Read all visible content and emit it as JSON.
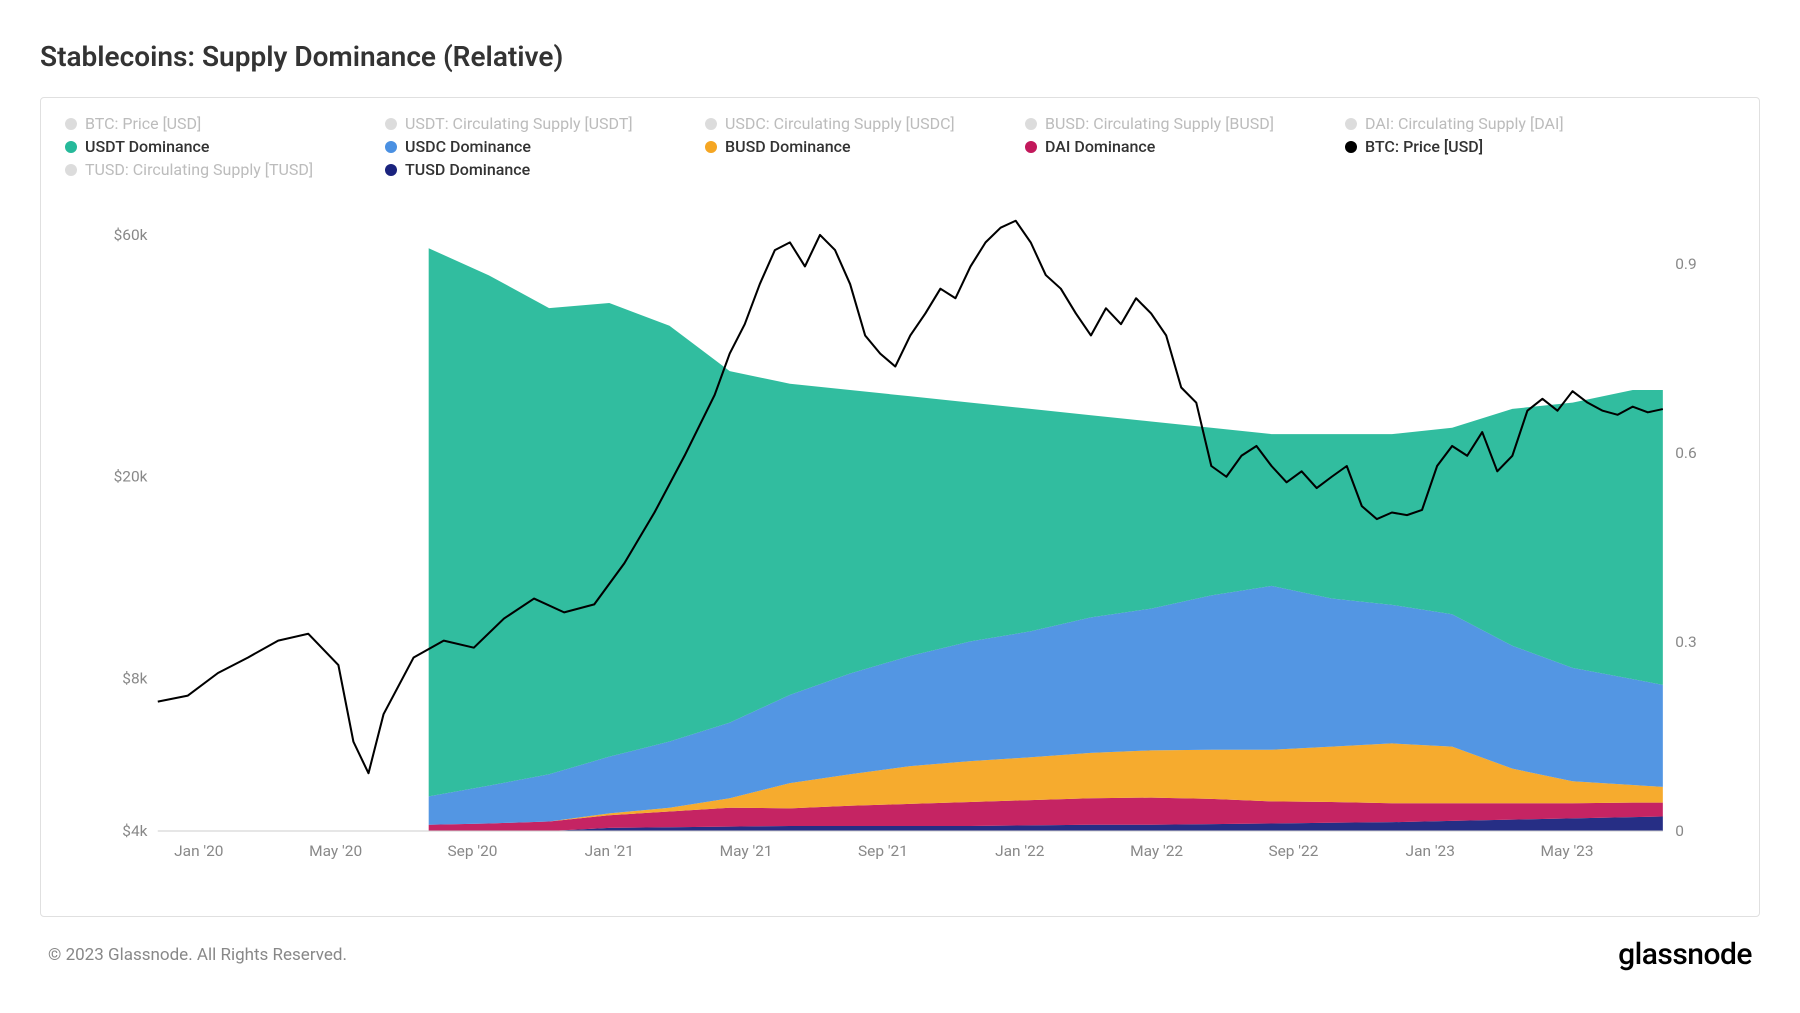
{
  "title": "Stablecoins: Supply Dominance (Relative)",
  "copyright": "© 2023 Glassnode. All Rights Reserved.",
  "logo": "glassnode",
  "watermark": "glassnode",
  "chart": {
    "type": "stacked-area-with-line",
    "background_color": "#ffffff",
    "border_color": "#e0e0e0",
    "grid_color": "#f5f5f5",
    "title_fontsize": 28,
    "label_fontsize": 15,
    "x_axis": {
      "ticks": [
        "Jan '20",
        "May '20",
        "Sep '20",
        "Jan '21",
        "May '21",
        "Sep '21",
        "Jan '22",
        "May '22",
        "Sep '22",
        "Jan '23",
        "May '23"
      ]
    },
    "y_left": {
      "scale": "log",
      "ticks": [
        {
          "v": 4000,
          "label": "$4k"
        },
        {
          "v": 8000,
          "label": "$8k"
        },
        {
          "v": 20000,
          "label": "$20k"
        },
        {
          "v": 60000,
          "label": "$60k"
        }
      ]
    },
    "y_right": {
      "scale": "linear",
      "min": 0,
      "max": 1,
      "ticks": [
        {
          "v": 0,
          "label": "0"
        },
        {
          "v": 0.3,
          "label": "0.3"
        },
        {
          "v": 0.6,
          "label": "0.6"
        },
        {
          "v": 0.9,
          "label": "0.9"
        }
      ]
    },
    "legend": [
      {
        "label": "BTC: Price [USD]",
        "color": "#bcbcbc",
        "active": false
      },
      {
        "label": "USDT: Circulating Supply [USDT]",
        "color": "#26b99a",
        "active": false
      },
      {
        "label": "USDC: Circulating Supply [USDC]",
        "color": "#9b8ce8",
        "active": false
      },
      {
        "label": "BUSD: Circulating Supply [BUSD]",
        "color": "#c9b857",
        "active": false
      },
      {
        "label": "DAI: Circulating Supply [DAI]",
        "color": "#c44d8e",
        "active": false
      },
      {
        "label": "USDT Dominance",
        "color": "#26b99a",
        "active": true
      },
      {
        "label": "USDC Dominance",
        "color": "#4a90e2",
        "active": true
      },
      {
        "label": "BUSD Dominance",
        "color": "#f5a623",
        "active": true
      },
      {
        "label": "DAI Dominance",
        "color": "#c2185b",
        "active": true
      },
      {
        "label": "BTC: Price [USD]",
        "color": "#000000",
        "active": true
      },
      {
        "label": "TUSD: Circulating Supply [TUSD]",
        "color": "#3a3a7e",
        "active": false
      },
      {
        "label": "TUSD Dominance",
        "color": "#1a237e",
        "active": true
      }
    ],
    "stacked_series": {
      "start_x": 0.18,
      "colors": {
        "tusd": "#1a237e",
        "dai": "#c2185b",
        "busd": "#f5a623",
        "usdc": "#4a90e2",
        "usdt": "#26b99a"
      },
      "data": [
        {
          "x": 0.18,
          "tusd": 0.0,
          "dai": 0.01,
          "busd": 0.0,
          "usdc": 0.045,
          "usdt": 0.87
        },
        {
          "x": 0.22,
          "tusd": 0.0,
          "dai": 0.012,
          "busd": 0.0,
          "usdc": 0.06,
          "usdt": 0.81
        },
        {
          "x": 0.26,
          "tusd": 0.0,
          "dai": 0.015,
          "busd": 0.0,
          "usdc": 0.075,
          "usdt": 0.74
        },
        {
          "x": 0.3,
          "tusd": 0.005,
          "dai": 0.02,
          "busd": 0.003,
          "usdc": 0.09,
          "usdt": 0.72
        },
        {
          "x": 0.34,
          "tusd": 0.006,
          "dai": 0.025,
          "busd": 0.006,
          "usdc": 0.105,
          "usdt": 0.66
        },
        {
          "x": 0.38,
          "tusd": 0.007,
          "dai": 0.03,
          "busd": 0.015,
          "usdc": 0.12,
          "usdt": 0.558
        },
        {
          "x": 0.42,
          "tusd": 0.008,
          "dai": 0.028,
          "busd": 0.04,
          "usdc": 0.14,
          "usdt": 0.494
        },
        {
          "x": 0.46,
          "tusd": 0.008,
          "dai": 0.032,
          "busd": 0.05,
          "usdc": 0.16,
          "usdt": 0.45
        },
        {
          "x": 0.5,
          "tusd": 0.008,
          "dai": 0.035,
          "busd": 0.06,
          "usdc": 0.175,
          "usdt": 0.412
        },
        {
          "x": 0.54,
          "tusd": 0.008,
          "dai": 0.038,
          "busd": 0.065,
          "usdc": 0.19,
          "usdt": 0.379
        },
        {
          "x": 0.58,
          "tusd": 0.009,
          "dai": 0.04,
          "busd": 0.068,
          "usdc": 0.2,
          "usdt": 0.353
        },
        {
          "x": 0.62,
          "tusd": 0.01,
          "dai": 0.042,
          "busd": 0.072,
          "usdc": 0.215,
          "usdt": 0.321
        },
        {
          "x": 0.66,
          "tusd": 0.01,
          "dai": 0.043,
          "busd": 0.075,
          "usdc": 0.225,
          "usdt": 0.297
        },
        {
          "x": 0.7,
          "tusd": 0.011,
          "dai": 0.04,
          "busd": 0.078,
          "usdc": 0.245,
          "usdt": 0.266
        },
        {
          "x": 0.74,
          "tusd": 0.012,
          "dai": 0.035,
          "busd": 0.082,
          "usdc": 0.26,
          "usdt": 0.241
        },
        {
          "x": 0.78,
          "tusd": 0.013,
          "dai": 0.033,
          "busd": 0.088,
          "usdc": 0.235,
          "usdt": 0.261
        },
        {
          "x": 0.82,
          "tusd": 0.014,
          "dai": 0.03,
          "busd": 0.095,
          "usdc": 0.22,
          "usdt": 0.271
        },
        {
          "x": 0.86,
          "tusd": 0.016,
          "dai": 0.028,
          "busd": 0.09,
          "usdc": 0.21,
          "usdt": 0.296
        },
        {
          "x": 0.9,
          "tusd": 0.018,
          "dai": 0.026,
          "busd": 0.055,
          "usdc": 0.195,
          "usdt": 0.376
        },
        {
          "x": 0.94,
          "tusd": 0.02,
          "dai": 0.024,
          "busd": 0.035,
          "usdc": 0.18,
          "usdt": 0.421
        },
        {
          "x": 0.98,
          "tusd": 0.022,
          "dai": 0.023,
          "busd": 0.028,
          "usdc": 0.168,
          "usdt": 0.459
        },
        {
          "x": 1.0,
          "tusd": 0.023,
          "dai": 0.022,
          "busd": 0.025,
          "usdc": 0.162,
          "usdt": 0.468
        }
      ]
    },
    "btc_line": {
      "color": "#000000",
      "width": 2,
      "data": [
        {
          "x": 0.0,
          "v": 7200
        },
        {
          "x": 0.02,
          "v": 7400
        },
        {
          "x": 0.04,
          "v": 8200
        },
        {
          "x": 0.06,
          "v": 8800
        },
        {
          "x": 0.08,
          "v": 9500
        },
        {
          "x": 0.1,
          "v": 9800
        },
        {
          "x": 0.12,
          "v": 8500
        },
        {
          "x": 0.13,
          "v": 6000
        },
        {
          "x": 0.14,
          "v": 5200
        },
        {
          "x": 0.15,
          "v": 6800
        },
        {
          "x": 0.17,
          "v": 8800
        },
        {
          "x": 0.19,
          "v": 9500
        },
        {
          "x": 0.21,
          "v": 9200
        },
        {
          "x": 0.23,
          "v": 10500
        },
        {
          "x": 0.25,
          "v": 11500
        },
        {
          "x": 0.27,
          "v": 10800
        },
        {
          "x": 0.29,
          "v": 11200
        },
        {
          "x": 0.31,
          "v": 13500
        },
        {
          "x": 0.33,
          "v": 17000
        },
        {
          "x": 0.35,
          "v": 22000
        },
        {
          "x": 0.37,
          "v": 29000
        },
        {
          "x": 0.38,
          "v": 35000
        },
        {
          "x": 0.39,
          "v": 40000
        },
        {
          "x": 0.4,
          "v": 48000
        },
        {
          "x": 0.41,
          "v": 56000
        },
        {
          "x": 0.42,
          "v": 58000
        },
        {
          "x": 0.43,
          "v": 52000
        },
        {
          "x": 0.44,
          "v": 60000
        },
        {
          "x": 0.45,
          "v": 56000
        },
        {
          "x": 0.46,
          "v": 48000
        },
        {
          "x": 0.47,
          "v": 38000
        },
        {
          "x": 0.48,
          "v": 35000
        },
        {
          "x": 0.49,
          "v": 33000
        },
        {
          "x": 0.5,
          "v": 38000
        },
        {
          "x": 0.51,
          "v": 42000
        },
        {
          "x": 0.52,
          "v": 47000
        },
        {
          "x": 0.53,
          "v": 45000
        },
        {
          "x": 0.54,
          "v": 52000
        },
        {
          "x": 0.55,
          "v": 58000
        },
        {
          "x": 0.56,
          "v": 62000
        },
        {
          "x": 0.57,
          "v": 64000
        },
        {
          "x": 0.58,
          "v": 58000
        },
        {
          "x": 0.59,
          "v": 50000
        },
        {
          "x": 0.6,
          "v": 47000
        },
        {
          "x": 0.61,
          "v": 42000
        },
        {
          "x": 0.62,
          "v": 38000
        },
        {
          "x": 0.63,
          "v": 43000
        },
        {
          "x": 0.64,
          "v": 40000
        },
        {
          "x": 0.65,
          "v": 45000
        },
        {
          "x": 0.66,
          "v": 42000
        },
        {
          "x": 0.67,
          "v": 38000
        },
        {
          "x": 0.68,
          "v": 30000
        },
        {
          "x": 0.69,
          "v": 28000
        },
        {
          "x": 0.7,
          "v": 21000
        },
        {
          "x": 0.71,
          "v": 20000
        },
        {
          "x": 0.72,
          "v": 22000
        },
        {
          "x": 0.73,
          "v": 23000
        },
        {
          "x": 0.74,
          "v": 21000
        },
        {
          "x": 0.75,
          "v": 19500
        },
        {
          "x": 0.76,
          "v": 20500
        },
        {
          "x": 0.77,
          "v": 19000
        },
        {
          "x": 0.78,
          "v": 20000
        },
        {
          "x": 0.79,
          "v": 21000
        },
        {
          "x": 0.8,
          "v": 17500
        },
        {
          "x": 0.81,
          "v": 16500
        },
        {
          "x": 0.82,
          "v": 17000
        },
        {
          "x": 0.83,
          "v": 16800
        },
        {
          "x": 0.84,
          "v": 17200
        },
        {
          "x": 0.85,
          "v": 21000
        },
        {
          "x": 0.86,
          "v": 23000
        },
        {
          "x": 0.87,
          "v": 22000
        },
        {
          "x": 0.88,
          "v": 24500
        },
        {
          "x": 0.89,
          "v": 20500
        },
        {
          "x": 0.9,
          "v": 22000
        },
        {
          "x": 0.91,
          "v": 27000
        },
        {
          "x": 0.92,
          "v": 28500
        },
        {
          "x": 0.93,
          "v": 27000
        },
        {
          "x": 0.94,
          "v": 29500
        },
        {
          "x": 0.95,
          "v": 28000
        },
        {
          "x": 0.96,
          "v": 27000
        },
        {
          "x": 0.97,
          "v": 26500
        },
        {
          "x": 0.98,
          "v": 27500
        },
        {
          "x": 0.99,
          "v": 26800
        },
        {
          "x": 1.0,
          "v": 27200
        }
      ]
    }
  }
}
